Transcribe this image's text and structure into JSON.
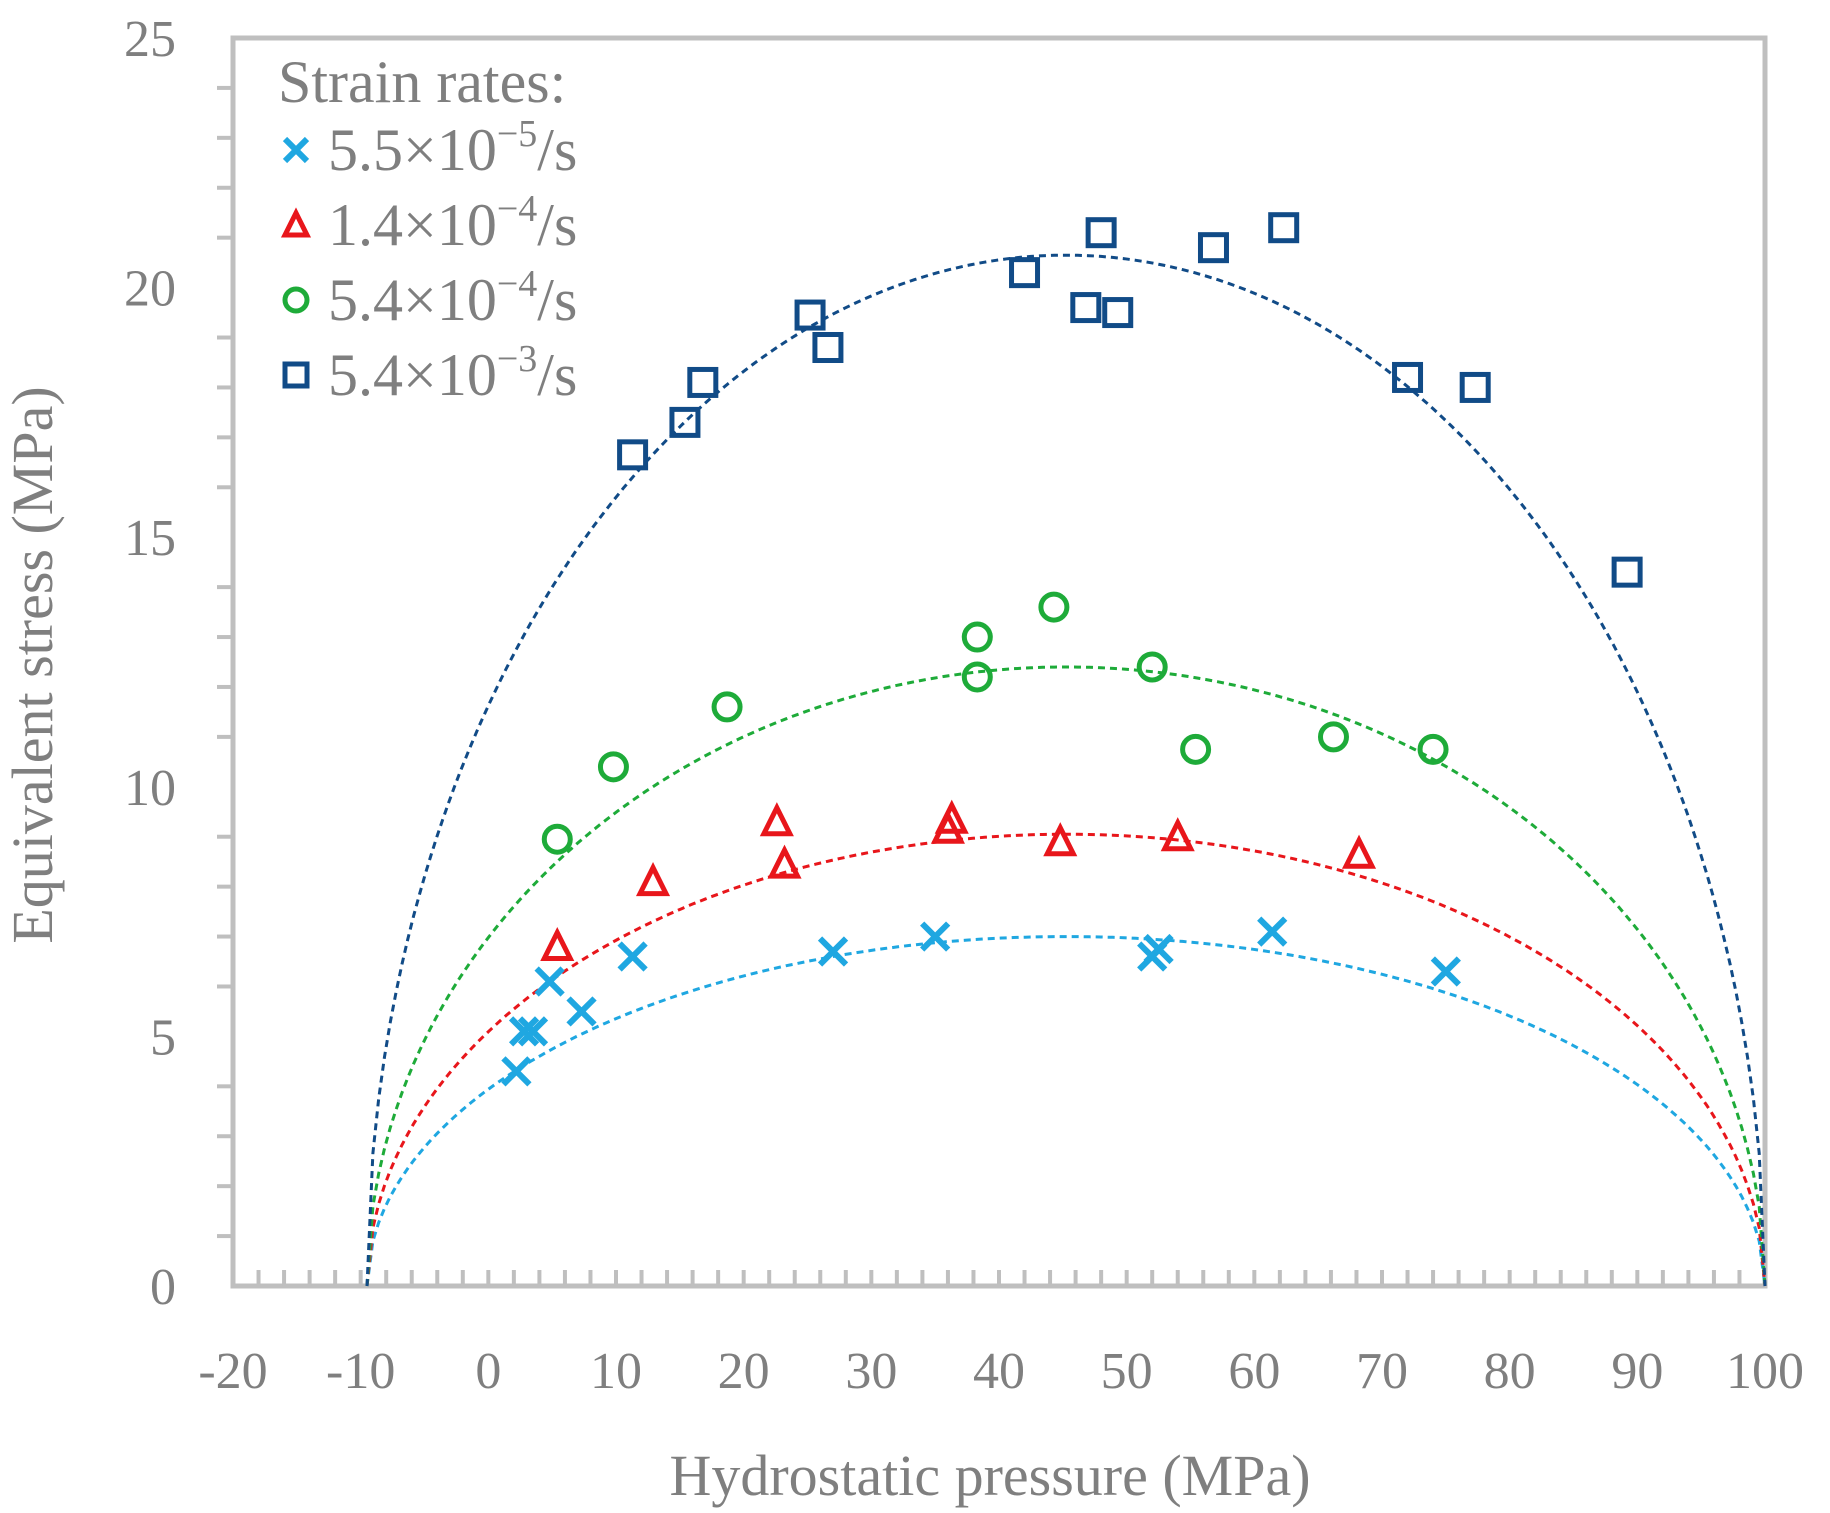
{
  "chart_data": {
    "type": "scatter",
    "xlabel": "Hydrostatic pressure (MPa)",
    "ylabel": "Equivalent stress (MPa)",
    "xlim": [
      -20,
      100
    ],
    "ylim": [
      0,
      25
    ],
    "xticks": [
      "-20",
      "-10",
      "0",
      "10",
      "20",
      "30",
      "40",
      "50",
      "60",
      "70",
      "80",
      "90",
      "100"
    ],
    "yticks": [
      "0",
      "5",
      "10",
      "15",
      "20",
      "25"
    ],
    "x_tick_values": [
      -20,
      -10,
      0,
      10,
      20,
      30,
      40,
      50,
      60,
      70,
      80,
      90,
      100
    ],
    "y_tick_values": [
      0,
      5,
      10,
      15,
      20,
      25
    ],
    "legend": {
      "title": "Strain rates:",
      "position": "top-left",
      "entries": [
        {
          "mantissa": "5.5×10",
          "exponent": "−5",
          "unit": "/s"
        },
        {
          "mantissa": "1.4×10",
          "exponent": "−4",
          "unit": "/s"
        },
        {
          "mantissa": "5.4×10",
          "exponent": "−4",
          "unit": "/s"
        },
        {
          "mantissa": "5.4×10",
          "exponent": "−3",
          "unit": "/s"
        }
      ]
    },
    "fit_domain": [
      -9.5,
      100
    ],
    "series": [
      {
        "name": "5.5×10^-5/s",
        "marker": "x",
        "color": "#1fa7e1",
        "fit_peak": 7.0,
        "points": [
          [
            2.2,
            4.3
          ],
          [
            2.8,
            5.1
          ],
          [
            3.5,
            5.1
          ],
          [
            4.8,
            6.1
          ],
          [
            7.3,
            5.5
          ],
          [
            11.3,
            6.6
          ],
          [
            27,
            6.7
          ],
          [
            35,
            7.0
          ],
          [
            52,
            6.6
          ],
          [
            52.5,
            6.75
          ],
          [
            61.4,
            7.1
          ],
          [
            75,
            6.3
          ]
        ]
      },
      {
        "name": "1.4×10^-4/s",
        "marker": "triangle",
        "color": "#e8161b",
        "fit_peak": 9.05,
        "points": [
          [
            5.4,
            6.8
          ],
          [
            12.9,
            8.1
          ],
          [
            22.6,
            9.3
          ],
          [
            23.2,
            8.45
          ],
          [
            36,
            9.15
          ],
          [
            36.3,
            9.35
          ],
          [
            44.8,
            8.9
          ],
          [
            54,
            9.0
          ],
          [
            68.2,
            8.65
          ]
        ]
      },
      {
        "name": "5.4×10^-4/s",
        "marker": "circle",
        "color": "#1eab39",
        "fit_peak": 12.4,
        "points": [
          [
            5.4,
            8.95
          ],
          [
            9.8,
            10.4
          ],
          [
            18.7,
            11.6
          ],
          [
            38.3,
            13.0
          ],
          [
            38.3,
            12.2
          ],
          [
            44.3,
            13.6
          ],
          [
            52,
            12.4
          ],
          [
            55.4,
            10.75
          ],
          [
            66.2,
            11.0
          ],
          [
            74,
            10.75
          ]
        ]
      },
      {
        "name": "5.4×10^-3/s",
        "marker": "square",
        "color": "#114b87",
        "fit_peak": 20.65,
        "points": [
          [
            11.3,
            16.65
          ],
          [
            15.4,
            17.3
          ],
          [
            16.8,
            18.1
          ],
          [
            25.2,
            19.45
          ],
          [
            26.6,
            18.8
          ],
          [
            42,
            20.3
          ],
          [
            46.8,
            19.6
          ],
          [
            48,
            21.1
          ],
          [
            49.3,
            19.5
          ],
          [
            56.8,
            20.8
          ],
          [
            62.3,
            21.2
          ],
          [
            72,
            18.2
          ],
          [
            77.3,
            18.0
          ],
          [
            89.2,
            14.3
          ]
        ]
      }
    ]
  }
}
